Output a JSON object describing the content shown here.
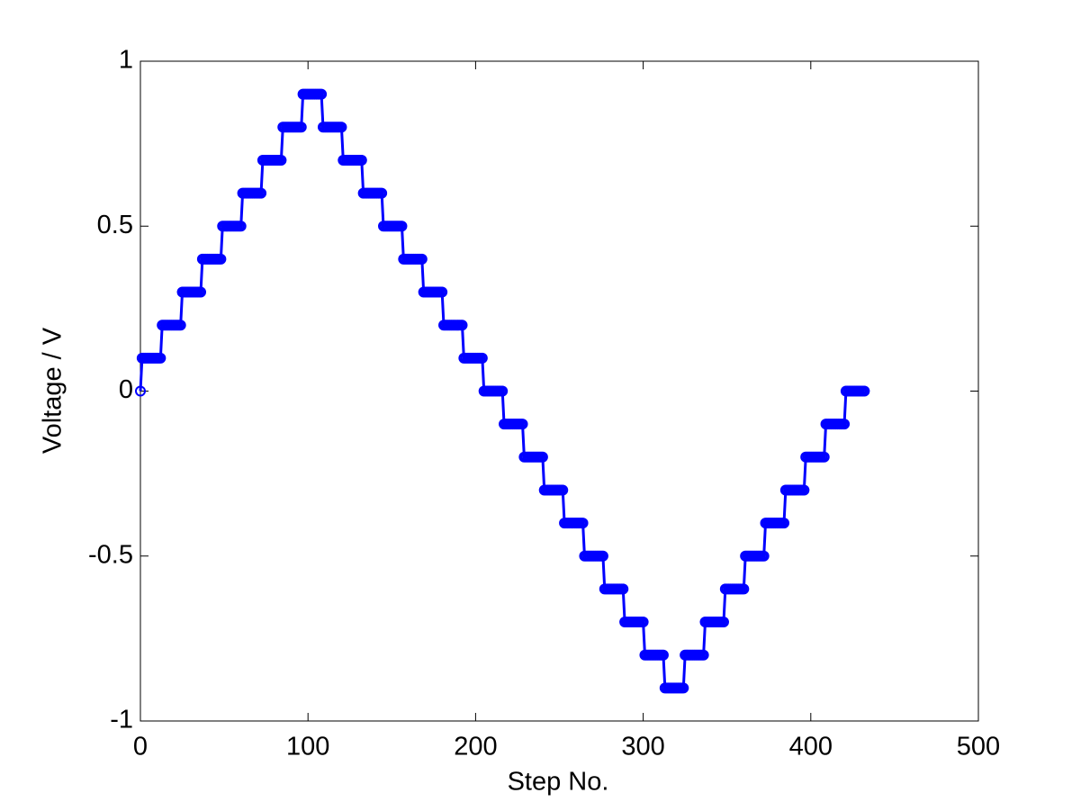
{
  "chart_data": {
    "type": "line",
    "xlabel": "Step No.",
    "ylabel": "Voltage / V",
    "xlim": [
      0,
      500
    ],
    "ylim": [
      -1,
      1
    ],
    "xticks": [
      0,
      100,
      200,
      300,
      400,
      500
    ],
    "yticks": [
      -1,
      -0.5,
      0,
      0.5,
      1
    ],
    "grid": false,
    "x": [
      0,
      1,
      2,
      3,
      4,
      5,
      6,
      7,
      8,
      9,
      10,
      11,
      12,
      13,
      14,
      15,
      16,
      17,
      18,
      19,
      20,
      21,
      22,
      23,
      24,
      25,
      26,
      27,
      28,
      29,
      30,
      31,
      32,
      33,
      34,
      35,
      36,
      37,
      38,
      39,
      40,
      41,
      42,
      43,
      44,
      45,
      46,
      47,
      48,
      49,
      50,
      51,
      52,
      53,
      54,
      55,
      56,
      57,
      58,
      59,
      60,
      61,
      62,
      63,
      64,
      65,
      66,
      67,
      68,
      69,
      70,
      71,
      72,
      73,
      74,
      75,
      76,
      77,
      78,
      79,
      80,
      81,
      82,
      83,
      84,
      85,
      86,
      87,
      88,
      89,
      90,
      91,
      92,
      93,
      94,
      95,
      96,
      97,
      98,
      99,
      100,
      101,
      102,
      103,
      104,
      105,
      106,
      107,
      108,
      109,
      110,
      111,
      112,
      113,
      114,
      115,
      116,
      117,
      118,
      119,
      120,
      121,
      122,
      123,
      124,
      125,
      126,
      127,
      128,
      129,
      130,
      131,
      132,
      133,
      134,
      135,
      136,
      137,
      138,
      139,
      140,
      141,
      142,
      143,
      144,
      145,
      146,
      147,
      148,
      149,
      150,
      151,
      152,
      153,
      154,
      155,
      156,
      157,
      158,
      159,
      160,
      161,
      162,
      163,
      164,
      165,
      166,
      167,
      168,
      169,
      170,
      171,
      172,
      173,
      174,
      175,
      176,
      177,
      178,
      179,
      180,
      181,
      182,
      183,
      184,
      185,
      186,
      187,
      188,
      189,
      190,
      191,
      192,
      193,
      194,
      195,
      196,
      197,
      198,
      199,
      200,
      201,
      202,
      203,
      204,
      205,
      206,
      207,
      208,
      209,
      210,
      211,
      212,
      213,
      214,
      215,
      216,
      217,
      218,
      219,
      220,
      221,
      222,
      223,
      224,
      225,
      226,
      227,
      228,
      229,
      230,
      231,
      232,
      233,
      234,
      235,
      236,
      237,
      238,
      239,
      240,
      241,
      242,
      243,
      244,
      245,
      246,
      247,
      248,
      249,
      250,
      251,
      252,
      253,
      254,
      255,
      256,
      257,
      258,
      259,
      260,
      261,
      262,
      263,
      264,
      265,
      266,
      267,
      268,
      269,
      270,
      271,
      272,
      273,
      274,
      275,
      276,
      277,
      278,
      279,
      280,
      281,
      282,
      283,
      284,
      285,
      286,
      287,
      288,
      289,
      290,
      291,
      292,
      293,
      294,
      295,
      296,
      297,
      298,
      299,
      300,
      301,
      302,
      303,
      304,
      305,
      306,
      307,
      308,
      309,
      310,
      311,
      312,
      313,
      314,
      315,
      316,
      317,
      318,
      319,
      320,
      321,
      322,
      323,
      324,
      325,
      326,
      327,
      328,
      329,
      330,
      331,
      332,
      333,
      334,
      335,
      336,
      337,
      338,
      339,
      340,
      341,
      342,
      343,
      344,
      345,
      346,
      347,
      348,
      349,
      350,
      351,
      352,
      353,
      354,
      355,
      356,
      357,
      358,
      359,
      360,
      361,
      362,
      363,
      364,
      365,
      366,
      367,
      368,
      369,
      370,
      371,
      372,
      373,
      374,
      375,
      376,
      377,
      378,
      379,
      380,
      381,
      382,
      383,
      384,
      385,
      386,
      387,
      388,
      389,
      390,
      391,
      392,
      393,
      394,
      395,
      396,
      397,
      398,
      399,
      400,
      401,
      402,
      403,
      404,
      405,
      406,
      407,
      408,
      409,
      410,
      411,
      412,
      413,
      414,
      415,
      416,
      417,
      418,
      419,
      420,
      421,
      422,
      423,
      424,
      425,
      426,
      427,
      428,
      429,
      430,
      431,
      432
    ],
    "series": [
      {
        "color": "#0000ff",
        "values": [
          0,
          0.1,
          0.1,
          0.1,
          0.1,
          0.1,
          0.1,
          0.1,
          0.1,
          0.1,
          0.1,
          0.1,
          0.1,
          0.2,
          0.2,
          0.2,
          0.2,
          0.2,
          0.2,
          0.2,
          0.2,
          0.2,
          0.2,
          0.2,
          0.2,
          0.3,
          0.3,
          0.3,
          0.3,
          0.3,
          0.3,
          0.3,
          0.3,
          0.3,
          0.3,
          0.3,
          0.3,
          0.4,
          0.4,
          0.4,
          0.4,
          0.4,
          0.4,
          0.4,
          0.4,
          0.4,
          0.4,
          0.4,
          0.4,
          0.5,
          0.5,
          0.5,
          0.5,
          0.5,
          0.5,
          0.5,
          0.5,
          0.5,
          0.5,
          0.5,
          0.5,
          0.6,
          0.6,
          0.6,
          0.6,
          0.6,
          0.6,
          0.6,
          0.6,
          0.6,
          0.6,
          0.6,
          0.6,
          0.7,
          0.7,
          0.7,
          0.7,
          0.7,
          0.7,
          0.7,
          0.7,
          0.7,
          0.7,
          0.7,
          0.7,
          0.8,
          0.8,
          0.8,
          0.8,
          0.8,
          0.8,
          0.8,
          0.8,
          0.8,
          0.8,
          0.8,
          0.8,
          0.9,
          0.9,
          0.9,
          0.9,
          0.9,
          0.9,
          0.9,
          0.9,
          0.9,
          0.9,
          0.9,
          0.9,
          0.8,
          0.8,
          0.8,
          0.8,
          0.8,
          0.8,
          0.8,
          0.8,
          0.8,
          0.8,
          0.8,
          0.8,
          0.7,
          0.7,
          0.7,
          0.7,
          0.7,
          0.7,
          0.7,
          0.7,
          0.7,
          0.7,
          0.7,
          0.7,
          0.6,
          0.6,
          0.6,
          0.6,
          0.6,
          0.6,
          0.6,
          0.6,
          0.6,
          0.6,
          0.6,
          0.6,
          0.5,
          0.5,
          0.5,
          0.5,
          0.5,
          0.5,
          0.5,
          0.5,
          0.5,
          0.5,
          0.5,
          0.5,
          0.4,
          0.4,
          0.4,
          0.4,
          0.4,
          0.4,
          0.4,
          0.4,
          0.4,
          0.4,
          0.4,
          0.4,
          0.3,
          0.3,
          0.3,
          0.3,
          0.3,
          0.3,
          0.3,
          0.3,
          0.3,
          0.3,
          0.3,
          0.3,
          0.2,
          0.2,
          0.2,
          0.2,
          0.2,
          0.2,
          0.2,
          0.2,
          0.2,
          0.2,
          0.2,
          0.2,
          0.1,
          0.1,
          0.1,
          0.1,
          0.1,
          0.1,
          0.1,
          0.1,
          0.1,
          0.1,
          0.1,
          0.1,
          0,
          0,
          0,
          0,
          0,
          0,
          0,
          0,
          0,
          0,
          0,
          0,
          -0.1,
          -0.1,
          -0.1,
          -0.1,
          -0.1,
          -0.1,
          -0.1,
          -0.1,
          -0.1,
          -0.1,
          -0.1,
          -0.1,
          -0.2,
          -0.2,
          -0.2,
          -0.2,
          -0.2,
          -0.2,
          -0.2,
          -0.2,
          -0.2,
          -0.2,
          -0.2,
          -0.2,
          -0.3,
          -0.3,
          -0.3,
          -0.3,
          -0.3,
          -0.3,
          -0.3,
          -0.3,
          -0.3,
          -0.3,
          -0.3,
          -0.3,
          -0.4,
          -0.4,
          -0.4,
          -0.4,
          -0.4,
          -0.4,
          -0.4,
          -0.4,
          -0.4,
          -0.4,
          -0.4,
          -0.4,
          -0.5,
          -0.5,
          -0.5,
          -0.5,
          -0.5,
          -0.5,
          -0.5,
          -0.5,
          -0.5,
          -0.5,
          -0.5,
          -0.5,
          -0.6,
          -0.6,
          -0.6,
          -0.6,
          -0.6,
          -0.6,
          -0.6,
          -0.6,
          -0.6,
          -0.6,
          -0.6,
          -0.6,
          -0.7,
          -0.7,
          -0.7,
          -0.7,
          -0.7,
          -0.7,
          -0.7,
          -0.7,
          -0.7,
          -0.7,
          -0.7,
          -0.7,
          -0.8,
          -0.8,
          -0.8,
          -0.8,
          -0.8,
          -0.8,
          -0.8,
          -0.8,
          -0.8,
          -0.8,
          -0.8,
          -0.8,
          -0.9,
          -0.9,
          -0.9,
          -0.9,
          -0.9,
          -0.9,
          -0.9,
          -0.9,
          -0.9,
          -0.9,
          -0.9,
          -0.9,
          -0.8,
          -0.8,
          -0.8,
          -0.8,
          -0.8,
          -0.8,
          -0.8,
          -0.8,
          -0.8,
          -0.8,
          -0.8,
          -0.8,
          -0.7,
          -0.7,
          -0.7,
          -0.7,
          -0.7,
          -0.7,
          -0.7,
          -0.7,
          -0.7,
          -0.7,
          -0.7,
          -0.7,
          -0.6,
          -0.6,
          -0.6,
          -0.6,
          -0.6,
          -0.6,
          -0.6,
          -0.6,
          -0.6,
          -0.6,
          -0.6,
          -0.6,
          -0.5,
          -0.5,
          -0.5,
          -0.5,
          -0.5,
          -0.5,
          -0.5,
          -0.5,
          -0.5,
          -0.5,
          -0.5,
          -0.5,
          -0.4,
          -0.4,
          -0.4,
          -0.4,
          -0.4,
          -0.4,
          -0.4,
          -0.4,
          -0.4,
          -0.4,
          -0.4,
          -0.4,
          -0.3,
          -0.3,
          -0.3,
          -0.3,
          -0.3,
          -0.3,
          -0.3,
          -0.3,
          -0.3,
          -0.3,
          -0.3,
          -0.3,
          -0.2,
          -0.2,
          -0.2,
          -0.2,
          -0.2,
          -0.2,
          -0.2,
          -0.2,
          -0.2,
          -0.2,
          -0.2,
          -0.2,
          -0.1,
          -0.1,
          -0.1,
          -0.1,
          -0.1,
          -0.1,
          -0.1,
          -0.1,
          -0.1,
          -0.1,
          -0.1,
          -0.1,
          0,
          0,
          0,
          0,
          0,
          0,
          0,
          0,
          0,
          0,
          0,
          0
        ]
      }
    ]
  }
}
